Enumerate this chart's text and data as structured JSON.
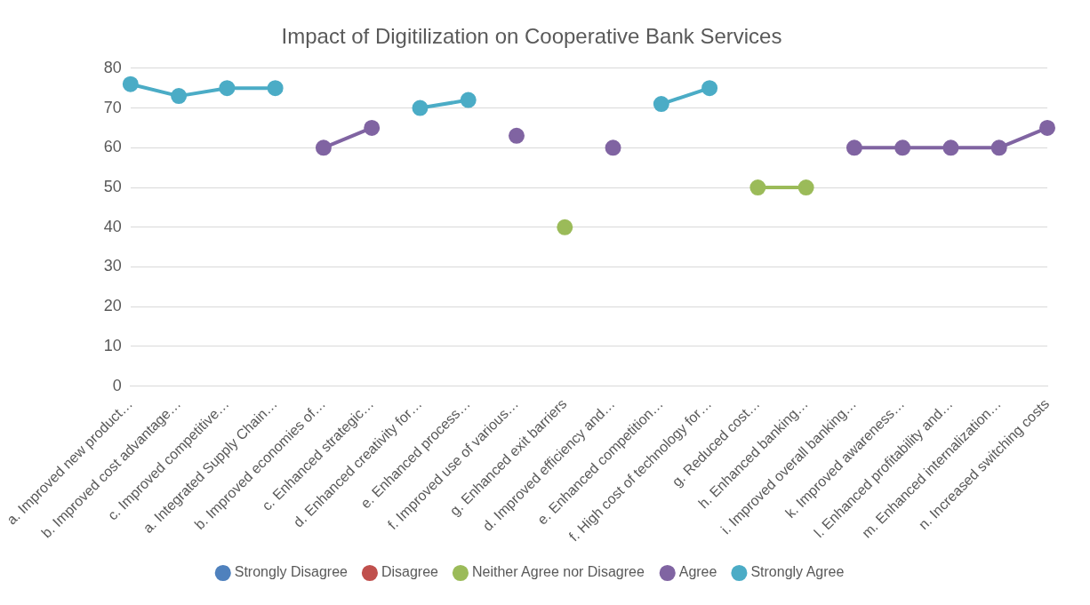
{
  "chart_data": {
    "type": "line",
    "title": "Impact of Digitilization on Cooperative Bank Services",
    "categories": [
      "a. Improved new product…",
      "b. Improved cost advantage…",
      "c. Improved competitive…",
      "a. Integrated Supply Chain…",
      "b. Improved economies of…",
      "c. Enhanced strategic…",
      "d. Enhanced creativity for…",
      "e. Enhanced process…",
      "f. Improved use of various…",
      "g. Enhanced exit barriers",
      "d. Improved efficiency and…",
      "e. Enhanced competition…",
      "f. High cost of technology for…",
      "g. Reduced cost…",
      "h. Enhanced banking…",
      "i. Improved overall banking…",
      "k. Improved awareness…",
      "l. Enhanced profitability and…",
      "m. Enhanced internalization…",
      "n. Increased switching costs"
    ],
    "series": [
      {
        "name": "Strongly Disagree",
        "color": "#4f81bd",
        "values": [
          null,
          null,
          null,
          null,
          null,
          null,
          null,
          null,
          null,
          null,
          null,
          null,
          null,
          null,
          null,
          null,
          null,
          null,
          null,
          null
        ]
      },
      {
        "name": "Disagree",
        "color": "#c0504d",
        "values": [
          null,
          null,
          null,
          null,
          null,
          null,
          null,
          null,
          null,
          null,
          null,
          null,
          null,
          null,
          null,
          null,
          null,
          null,
          null,
          null
        ]
      },
      {
        "name": "Neither Agree nor Disagree",
        "color": "#9bbb59",
        "values": [
          null,
          null,
          null,
          null,
          null,
          null,
          null,
          null,
          null,
          40,
          null,
          null,
          null,
          50,
          50,
          null,
          null,
          null,
          null,
          null
        ]
      },
      {
        "name": "Agree",
        "color": "#8064a2",
        "values": [
          null,
          null,
          null,
          null,
          60,
          65,
          null,
          null,
          63,
          null,
          60,
          null,
          null,
          null,
          null,
          60,
          60,
          60,
          60,
          65
        ]
      },
      {
        "name": "Strongly Agree",
        "color": "#4bacc6",
        "values": [
          76,
          73,
          75,
          75,
          null,
          null,
          70,
          72,
          null,
          null,
          null,
          71,
          75,
          null,
          null,
          null,
          null,
          null,
          null,
          null
        ]
      }
    ],
    "ylim": [
      0,
      80
    ],
    "yticks": [
      0,
      10,
      20,
      30,
      40,
      50,
      60,
      70,
      80
    ],
    "grid": "y",
    "legend": "bottom",
    "marker": "circle",
    "line_style": "solid"
  }
}
